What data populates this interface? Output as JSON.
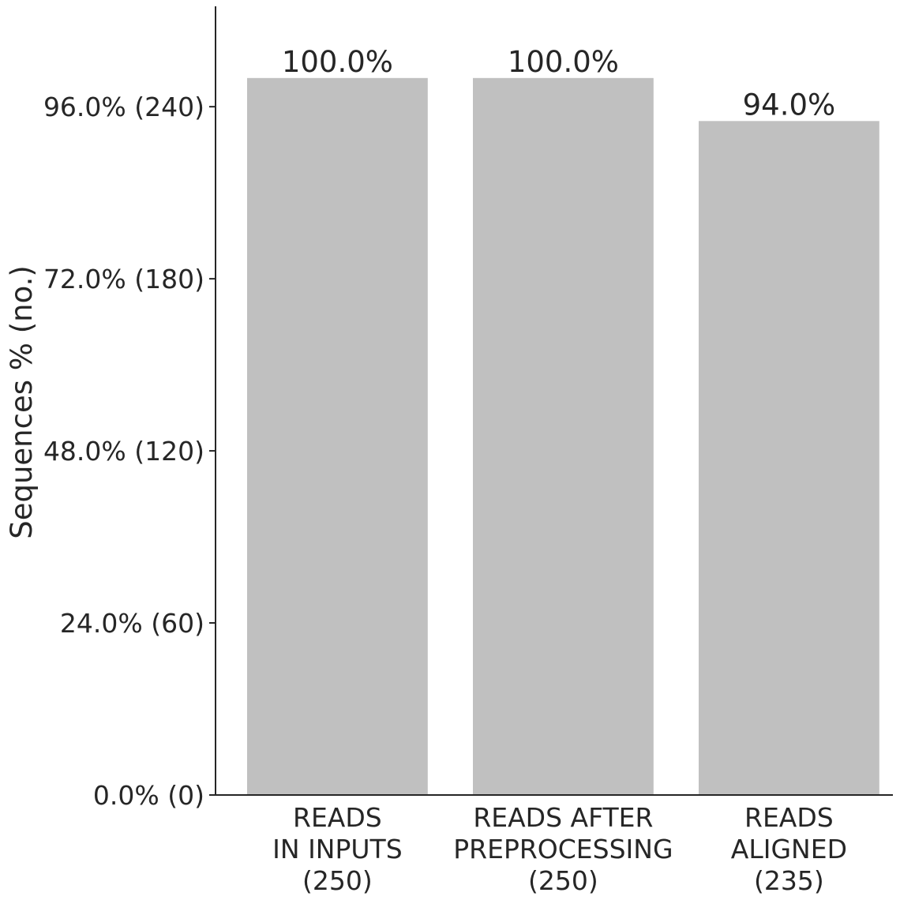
{
  "chart_data": {
    "type": "bar",
    "categories": [
      [
        "READS",
        "IN INPUTS",
        "(250)"
      ],
      [
        "READS AFTER",
        "PREPROCESSING",
        "(250)"
      ],
      [
        "READS",
        "ALIGNED",
        "(235)"
      ]
    ],
    "values": [
      250,
      250,
      235
    ],
    "bar_labels": [
      "100.0%",
      "100.0%",
      "94.0%"
    ],
    "title": "",
    "xlabel": "",
    "ylabel": "Sequences % (no.)",
    "y_ticks": [
      0,
      60,
      120,
      180,
      240
    ],
    "y_tick_labels": [
      "0.0% (0)",
      "24.0% (60)",
      "48.0% (120)",
      "72.0% (180)",
      "96.0% (240)"
    ],
    "ylim": [
      0,
      275
    ],
    "bar_color": "#c0c0c0",
    "text_color": "#262626",
    "grid": false
  }
}
